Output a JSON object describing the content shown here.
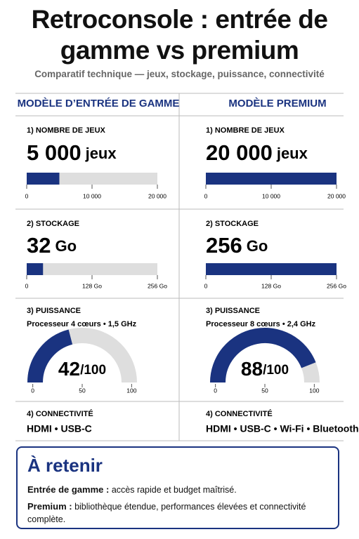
{
  "header": {
    "title": "Retroconsole : entrée de gamme vs premium",
    "subtitle": "Comparatif technique — jeux, stockage, puissance, connectivité"
  },
  "columns": [
    {
      "heading": "MODÈLE D’ENTRÉE DE GAMME",
      "games": {
        "label": "1) NOMBRE DE JEUX",
        "value": 5000,
        "value_label": "5 000",
        "unit": "jeux",
        "xlim": [
          0,
          20000
        ],
        "xticks": [
          0,
          {
            "value": 10000,
            "label": "10 000"
          },
          {
            "value": 20000,
            "label": "20 000"
          }
        ]
      },
      "storage": {
        "label": "2) STOCKAGE",
        "value": 32,
        "unit": "Go",
        "xlim": [
          0,
          256
        ],
        "xticks": [
          0,
          {
            "value": 128,
            "label": "128 Go"
          },
          {
            "value": 256,
            "label": "256 Go"
          }
        ]
      },
      "power": {
        "label": "3) PUISSANCE",
        "spec": "Processeur 4 cœurs • 1,5 GHz",
        "value": 42,
        "value_suffix": "/100",
        "lim": [
          0,
          100
        ],
        "ticks": [
          0,
          50,
          100
        ]
      },
      "connectivity": {
        "label": "4) CONNECTIVITÉ",
        "text": "HDMI • USB-C"
      }
    },
    {
      "heading": "MODÈLE PREMIUM",
      "games": {
        "label": "1) NOMBRE DE JEUX",
        "value": 20000,
        "value_label": "20 000",
        "unit": "jeux",
        "xlim": [
          0,
          20000
        ],
        "xticks": [
          0,
          {
            "value": 10000,
            "label": "10 000"
          },
          {
            "value": 20000,
            "label": "20 000"
          }
        ]
      },
      "storage": {
        "label": "2) STOCKAGE",
        "value": 256,
        "unit": "Go",
        "xlim": [
          0,
          256
        ],
        "xticks": [
          0,
          {
            "value": 128,
            "label": "128 Go"
          },
          {
            "value": 256,
            "label": "256 Go"
          }
        ]
      },
      "power": {
        "label": "3) PUISSANCE",
        "spec": "Processeur 8 cœurs • 2,4 GHz",
        "value": 88,
        "value_suffix": "/100",
        "lim": [
          0,
          100
        ],
        "ticks": [
          0,
          50,
          100
        ]
      },
      "connectivity": {
        "label": "4) CONNECTIVITÉ",
        "text": "HDMI • USB-C • Wi-Fi • Bluetooth"
      }
    }
  ],
  "takeaway": {
    "title": "À retenir",
    "items": [
      {
        "term": "Entrée de gamme :",
        "text": "accès rapide et budget maîtrisé."
      },
      {
        "term": "Premium :",
        "text": "bibliothèque étendue, performances élevées et connectivité complète."
      }
    ]
  }
}
